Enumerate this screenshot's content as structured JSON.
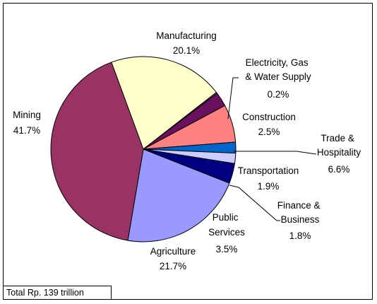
{
  "chart_data": {
    "type": "pie",
    "total_note": "Total Rp. 139 trillion",
    "slices": [
      {
        "name": "Manufacturing",
        "value": 20.1,
        "label": "20.1%",
        "color": "#ffffcc"
      },
      {
        "name": "Electricity, Gas & Water Supply",
        "value": 0.2,
        "label": "0.2%",
        "color": "#7a7a9a"
      },
      {
        "name": "Construction",
        "value": 2.5,
        "label": "2.5%",
        "color": "#6b0f5f"
      },
      {
        "name": "Trade & Hospitality",
        "value": 6.6,
        "label": "6.6%",
        "color": "#ff8080"
      },
      {
        "name": "Transportation",
        "value": 1.9,
        "label": "1.9%",
        "color": "#0066cc"
      },
      {
        "name": "Finance & Business",
        "value": 1.8,
        "label": "1.8%",
        "color": "#ccccff"
      },
      {
        "name": "Public Services",
        "value": 3.5,
        "label": "3.5%",
        "color": "#000080"
      },
      {
        "name": "Agriculture",
        "value": 21.7,
        "label": "21.7%",
        "color": "#9999ff"
      },
      {
        "name": "Mining",
        "value": 41.7,
        "label": "41.7%",
        "color": "#993366"
      }
    ]
  }
}
